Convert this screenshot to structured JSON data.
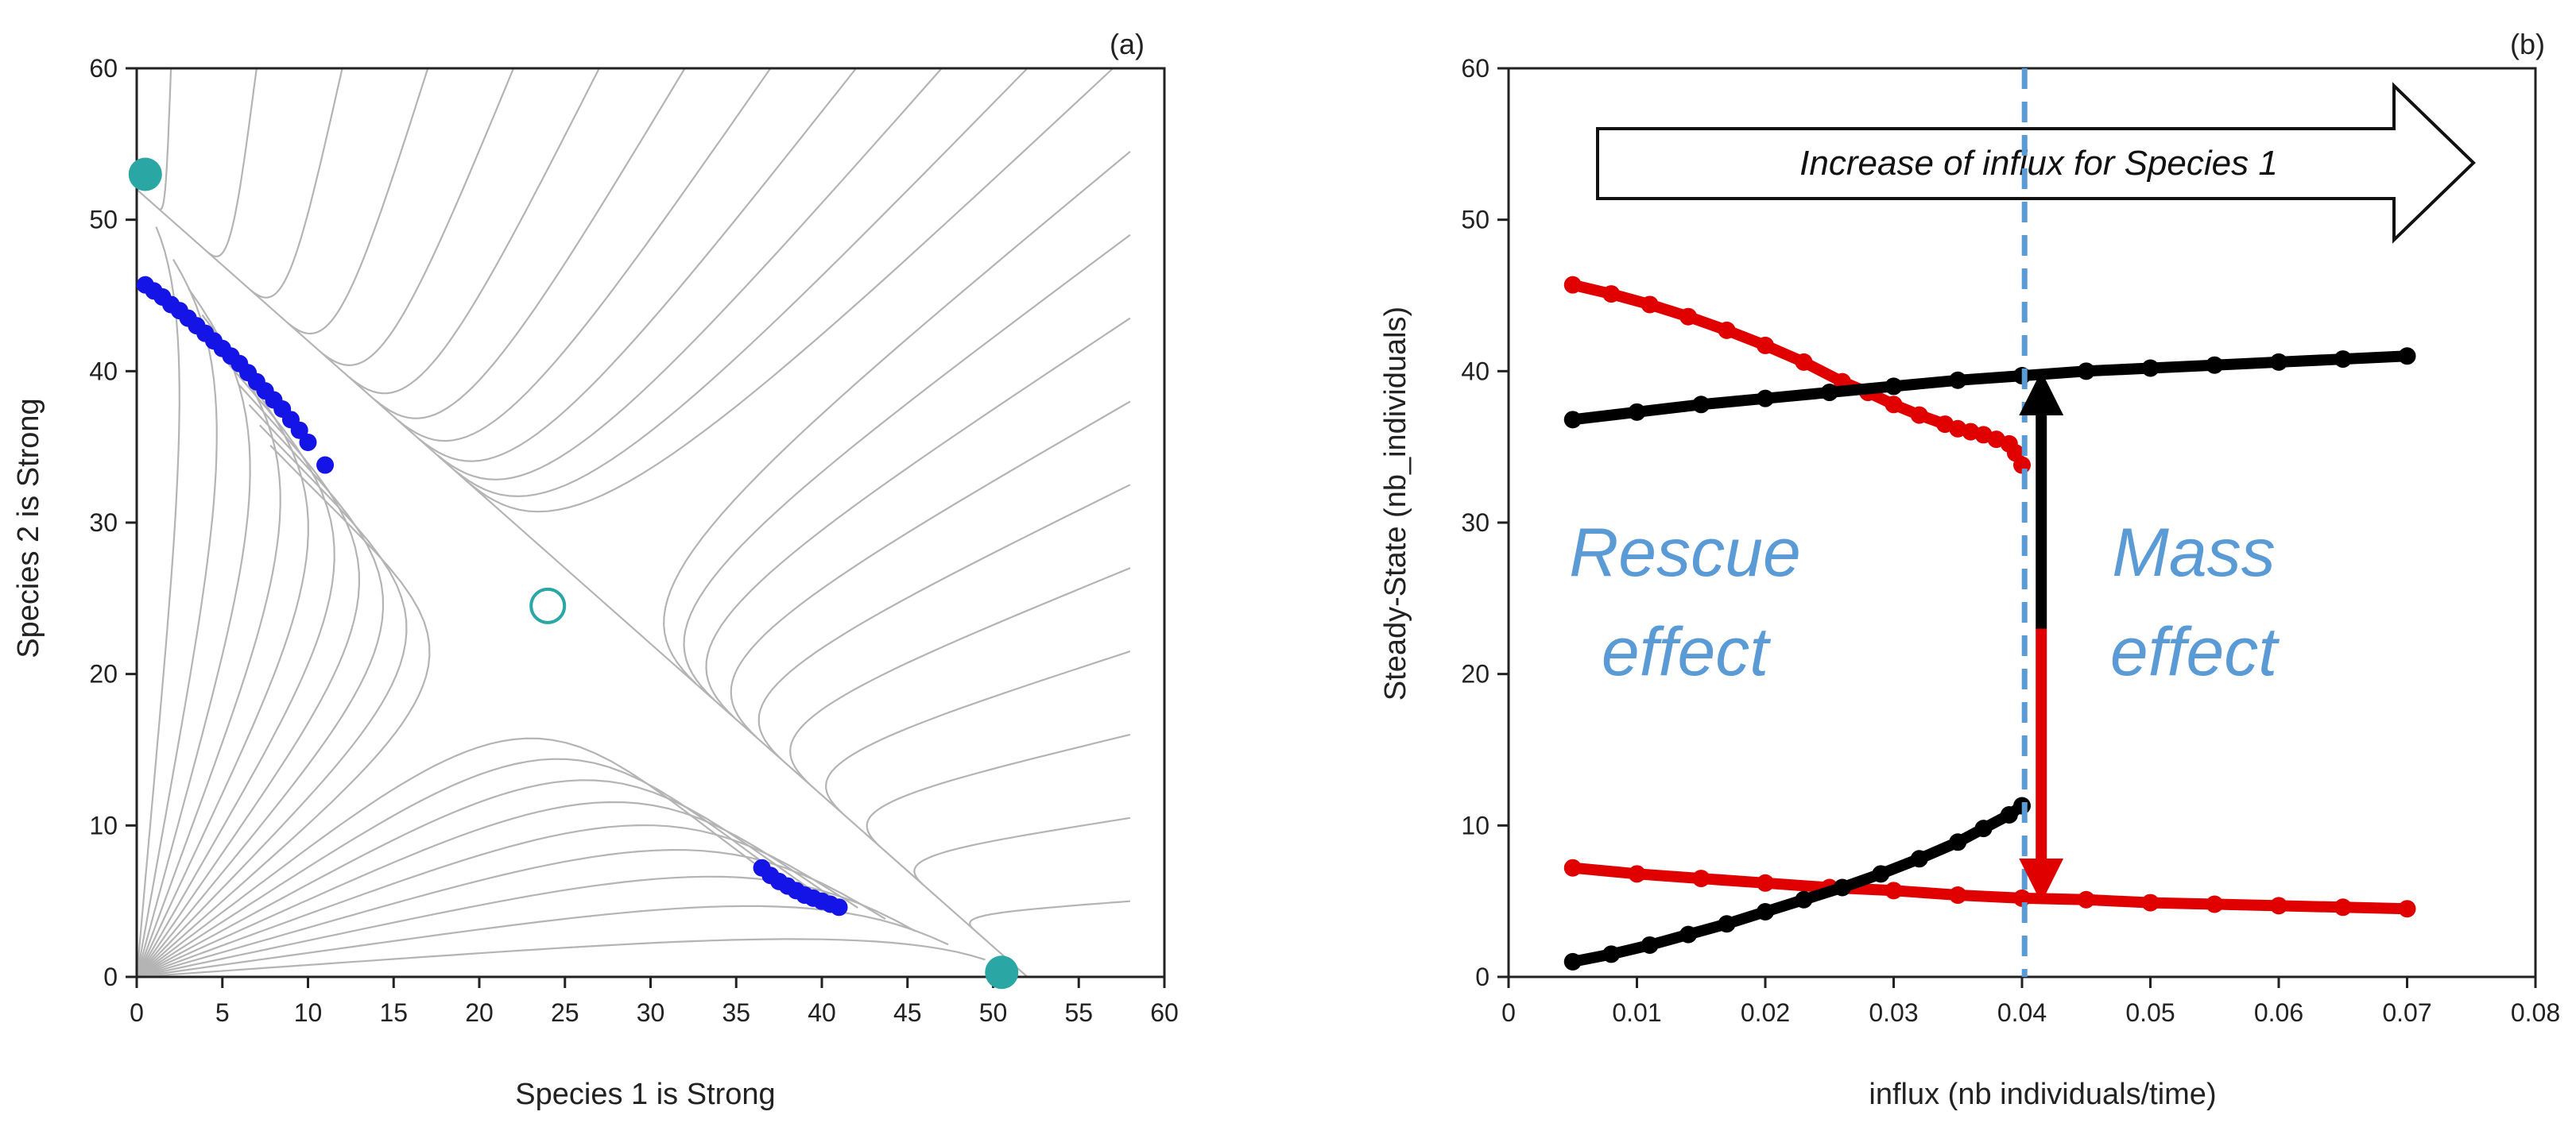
{
  "chart_data": [
    {
      "panel": "(a)",
      "type": "scatter",
      "xlabel": "Species 1 is Strong",
      "ylabel": "Species 2 is Strong",
      "xlim": [
        0,
        60
      ],
      "ylim": [
        0,
        60
      ],
      "xticks": [
        "0",
        "5",
        "10",
        "15",
        "20",
        "25",
        "30",
        "35",
        "40",
        "45",
        "50",
        "55",
        "60"
      ],
      "yticks": [
        "0",
        "10",
        "20",
        "30",
        "40",
        "50",
        "60"
      ],
      "equilibria": {
        "stable": [
          {
            "x": 0.5,
            "y": 53
          },
          {
            "x": 50.5,
            "y": 0.3
          }
        ],
        "unstable": [
          {
            "x": 24,
            "y": 24.5
          }
        ]
      },
      "series": [
        {
          "name": "steady states (species 2 dominant)",
          "color": "#1414e6",
          "x": [
            0.5,
            1,
            1.5,
            2,
            2.5,
            3,
            3.5,
            4,
            4.5,
            5,
            5.5,
            6,
            6.5,
            7,
            7.5,
            8,
            8.5,
            9,
            9.5,
            10,
            11
          ],
          "y": [
            45.7,
            45.3,
            44.9,
            44.4,
            44.0,
            43.5,
            43.0,
            42.5,
            42.0,
            41.5,
            41.0,
            40.5,
            39.9,
            39.3,
            38.7,
            38.1,
            37.5,
            36.8,
            36.1,
            35.3,
            33.8
          ]
        },
        {
          "name": "steady states (species 1 dominant)",
          "color": "#1414e6",
          "x": [
            36.5,
            37,
            37.5,
            38,
            38.5,
            39,
            39.5,
            40,
            40.5,
            41
          ],
          "y": [
            7.2,
            6.7,
            6.3,
            6.0,
            5.7,
            5.4,
            5.2,
            5.0,
            4.8,
            4.6
          ]
        }
      ],
      "trajectory_lines": "phase-plane trajectories (grey) converging to the separatrix x + y = 52"
    },
    {
      "panel": "(b)",
      "type": "scatter",
      "xlabel": "influx (nb individuals/time)",
      "ylabel": "Steady-State (nb_individuals)",
      "xlim": [
        0,
        0.08
      ],
      "ylim": [
        0,
        60
      ],
      "xticks": [
        "0",
        "0.01",
        "0.02",
        "0.03",
        "0.04",
        "0.05",
        "0.06",
        "0.07",
        "0.08"
      ],
      "yticks": [
        "0",
        "10",
        "20",
        "30",
        "40",
        "50",
        "60"
      ],
      "vline_x": 0.0402,
      "banner": "Increase of influx for Species 1",
      "annotations": [
        "Rescue",
        "effect",
        "Mass",
        "effect"
      ],
      "series": [
        {
          "name": "red upper branch",
          "color": "#e00000",
          "x": [
            0.005,
            0.008,
            0.011,
            0.014,
            0.017,
            0.02,
            0.023,
            0.026,
            0.028,
            0.03,
            0.032,
            0.034,
            0.035,
            0.036,
            0.037,
            0.038,
            0.039,
            0.0395,
            0.04
          ],
          "y": [
            45.7,
            45.1,
            44.4,
            43.6,
            42.7,
            41.7,
            40.6,
            39.3,
            38.6,
            37.8,
            37.1,
            36.5,
            36.2,
            36.0,
            35.8,
            35.5,
            35.2,
            34.6,
            33.8
          ]
        },
        {
          "name": "red lower branch",
          "color": "#e00000",
          "x": [
            0.005,
            0.01,
            0.015,
            0.02,
            0.025,
            0.03,
            0.035,
            0.04,
            0.045,
            0.05,
            0.055,
            0.06,
            0.065,
            0.07
          ],
          "y": [
            7.2,
            6.8,
            6.5,
            6.2,
            5.9,
            5.7,
            5.4,
            5.2,
            5.1,
            4.9,
            4.8,
            4.7,
            4.6,
            4.5
          ]
        },
        {
          "name": "black upper branch",
          "color": "#000000",
          "x": [
            0.005,
            0.01,
            0.015,
            0.02,
            0.025,
            0.03,
            0.035,
            0.04,
            0.045,
            0.05,
            0.055,
            0.06,
            0.065,
            0.07
          ],
          "y": [
            36.8,
            37.3,
            37.8,
            38.2,
            38.6,
            39.0,
            39.4,
            39.7,
            40.0,
            40.2,
            40.4,
            40.6,
            40.8,
            41.0
          ]
        },
        {
          "name": "black lower branch",
          "color": "#000000",
          "x": [
            0.005,
            0.008,
            0.011,
            0.014,
            0.017,
            0.02,
            0.023,
            0.026,
            0.029,
            0.032,
            0.035,
            0.037,
            0.039,
            0.04
          ],
          "y": [
            1.0,
            1.5,
            2.1,
            2.8,
            3.5,
            4.3,
            5.1,
            5.9,
            6.8,
            7.8,
            8.9,
            9.8,
            10.7,
            11.3
          ]
        }
      ],
      "arrows": [
        {
          "color": "#000000",
          "x": 0.0415,
          "from_y": 23,
          "to_y": 39.7
        },
        {
          "color": "#e00000",
          "x": 0.0415,
          "from_y": 23,
          "to_y": 5.2
        }
      ]
    }
  ]
}
